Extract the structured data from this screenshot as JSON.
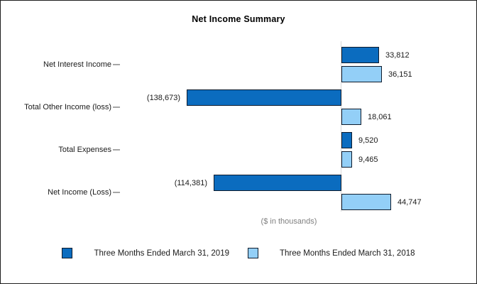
{
  "window": {
    "background": "#ffffff",
    "border_color": "#1f1f1f"
  },
  "chart_data": {
    "type": "bar",
    "orientation": "horizontal",
    "title": "Net Income Summary",
    "axis_note": "($ in thousands)",
    "grid": false,
    "legend_position": "bottom",
    "zero_line_color": "#d9d9d9",
    "tick_color": "#a6a6a6",
    "categories": [
      "Net Interest Income",
      "Total Other Income (loss)",
      "Total Expenses",
      "Net Income (Loss)"
    ],
    "series": [
      {
        "name": "Three Months Ended March 31, 2019",
        "color": "#0b6cbf",
        "border_color": "#0e1b2c",
        "values": [
          33812,
          -138673,
          9520,
          -114381
        ],
        "value_labels": [
          "33,812",
          "(138,673)",
          "9,520",
          "(114,381)"
        ]
      },
      {
        "name": "Three Months Ended March 31, 2018",
        "color": "#93cff7",
        "border_color": "#0e1b2c",
        "values": [
          36151,
          18061,
          9465,
          44747
        ],
        "value_labels": [
          "36,151",
          "18,061",
          "9,465",
          "44,747"
        ]
      }
    ]
  }
}
